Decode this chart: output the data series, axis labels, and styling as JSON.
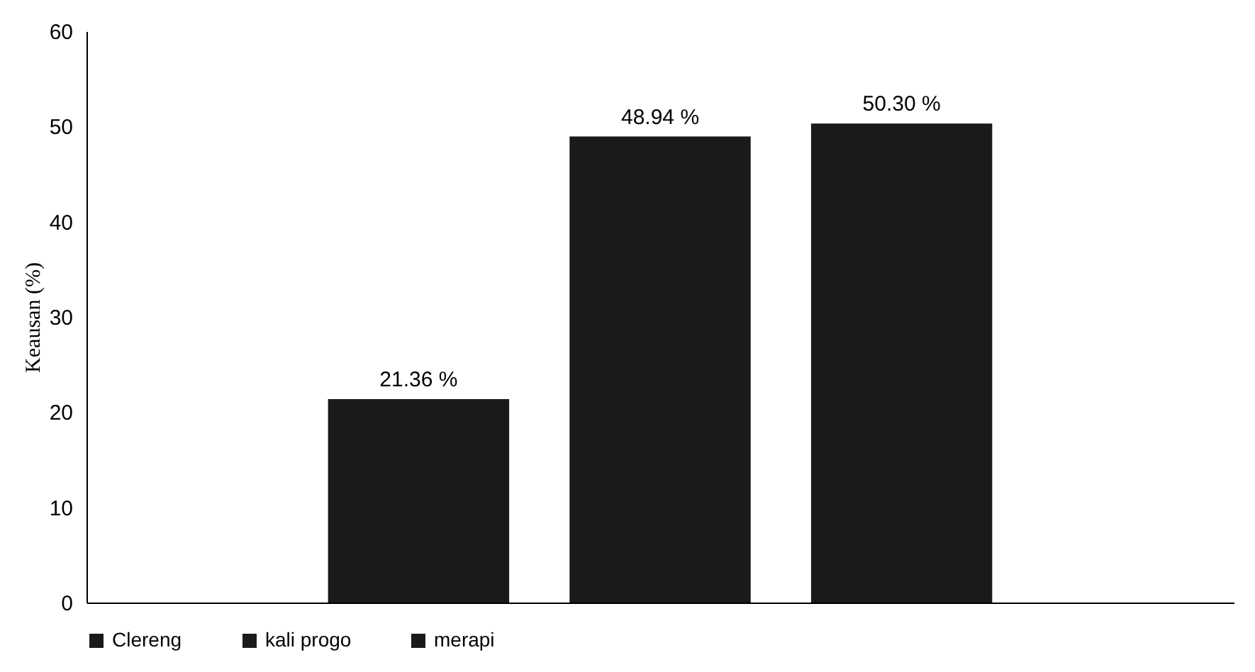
{
  "chart_data": {
    "type": "bar",
    "categories": [
      null
    ],
    "ylabel": "Keausan (%)",
    "ylim": [
      0,
      60
    ],
    "yticks": [
      0,
      10,
      20,
      30,
      40,
      50,
      60
    ],
    "grid": false,
    "legend": "bottom",
    "series": [
      {
        "name": "Clereng",
        "color": "#1a1a1a",
        "values": [
          21.36
        ],
        "value_labels": [
          "21.36 %"
        ]
      },
      {
        "name": "kali progo",
        "color": "#1a1a1a",
        "values": [
          48.94
        ],
        "value_labels": [
          "48.94 %"
        ]
      },
      {
        "name": "merapi",
        "color": "#1a1a1a",
        "values": [
          50.3
        ],
        "value_labels": [
          "50.30 %"
        ]
      }
    ]
  }
}
